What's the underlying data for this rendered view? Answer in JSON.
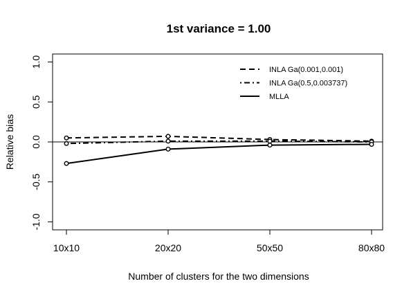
{
  "chart_data": {
    "type": "line",
    "title": "1st variance = 1.00",
    "xlabel": "Number of clusters for the two dimensions",
    "ylabel": "Relative bias",
    "categories": [
      "10x10",
      "20x20",
      "50x50",
      "80x80"
    ],
    "ylim": [
      -1.1,
      1.1
    ],
    "yticks": [
      "-1.0",
      "-0.5",
      "0.0",
      "0.5",
      "1.0"
    ],
    "reference_line": 0.0,
    "grid": false,
    "legend_position": "top-right",
    "series": [
      {
        "name": "INLA Ga(0.001,0.001)",
        "style": "dashed",
        "values": [
          0.05,
          0.07,
          0.03,
          0.01
        ]
      },
      {
        "name": "INLA Ga(0.5,0.003737)",
        "style": "dotdash",
        "values": [
          -0.02,
          0.01,
          0.01,
          0.0
        ]
      },
      {
        "name": "MLLA",
        "style": "solid",
        "values": [
          -0.27,
          -0.09,
          -0.04,
          -0.03
        ]
      }
    ]
  }
}
